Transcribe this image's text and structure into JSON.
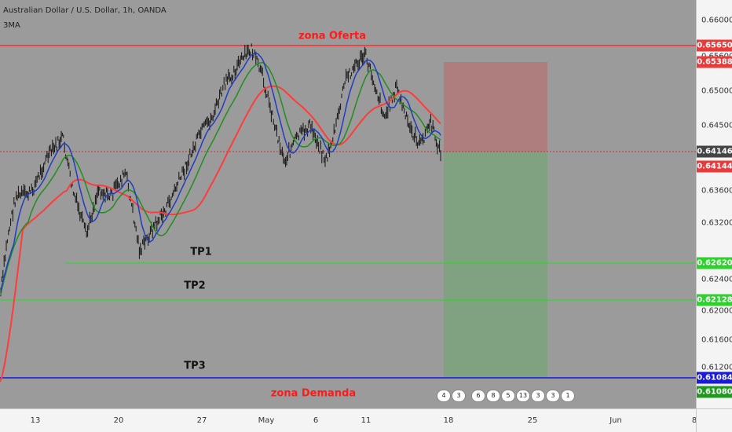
{
  "header": {
    "title": "Australian Dollar / U.S. Dollar, 1h, OANDA",
    "indicator": "3MA"
  },
  "annotations": {
    "zona_oferta": "zona Oferta",
    "zona_demanda": "zona Demanda",
    "tp1": "TP1",
    "tp2": "TP2",
    "tp3": "TP3"
  },
  "y_axis": {
    "ticks": [
      "0.66000",
      "0.65600",
      "0.65000",
      "0.64500",
      "0.63600",
      "0.63200",
      "0.62400",
      "0.62000",
      "0.61600",
      "0.61200"
    ],
    "tags": [
      {
        "text": "0.65650",
        "color": "#e83b3b"
      },
      {
        "text": "0.65388",
        "color": "#e83b3b"
      },
      {
        "text": "0.64146",
        "color": "#444444"
      },
      {
        "text": "0.64144",
        "color": "#e83b3b"
      },
      {
        "text": "0.62620",
        "color": "#2ed12e"
      },
      {
        "text": "0.62128",
        "color": "#2ed12e"
      },
      {
        "text": "0.61084",
        "color": "#1a1adb"
      },
      {
        "text": "0.61080",
        "color": "#1e9b1e"
      }
    ]
  },
  "x_axis": {
    "ticks": [
      "13",
      "20",
      "27",
      "May",
      "6",
      "11",
      "18",
      "25",
      "Jun",
      "8"
    ]
  },
  "events": [
    "4",
    "3",
    "6",
    "8",
    "5",
    "13",
    "3",
    "3",
    "1"
  ],
  "colors": {
    "resistance": "#ff2a2a",
    "support": "#1414e6",
    "tp_line": "#19e019",
    "stop_zone": "#b07a7a",
    "target_zone": "#7aa07a",
    "ma_fast": "#1f3fbf",
    "ma_mid": "#1f8f1f",
    "ma_slow": "#ff3b3b"
  }
}
